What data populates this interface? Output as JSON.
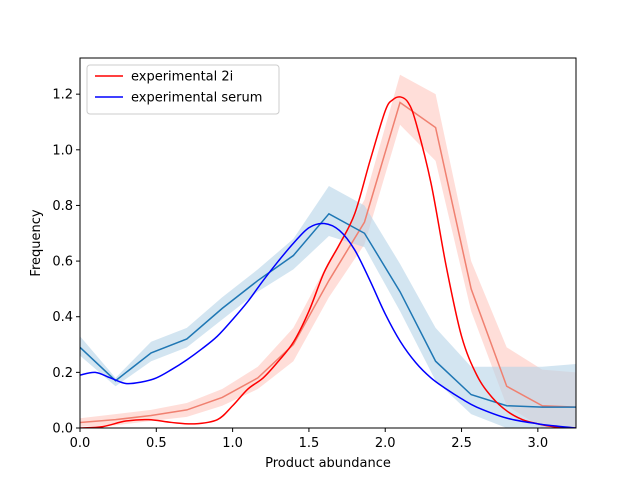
{
  "chart_data": {
    "type": "line",
    "title": "",
    "xlabel": "Product abundance",
    "ylabel": "Frequency",
    "xlim": [
      0.0,
      3.25
    ],
    "ylim": [
      0.0,
      1.33
    ],
    "xticks": [
      "0.0",
      "0.5",
      "1.0",
      "1.5",
      "2.0",
      "2.5",
      "3.0"
    ],
    "yticks": [
      "0.0",
      "0.2",
      "0.4",
      "0.6",
      "0.8",
      "1.0",
      "1.2"
    ],
    "grid": false,
    "legend_position": "top-left",
    "series": [
      {
        "name": "experimental 2i",
        "kind": "smooth-line",
        "color": "#ff0000",
        "x": [
          0.0,
          0.15,
          0.3,
          0.45,
          0.6,
          0.75,
          0.9,
          1.0,
          1.1,
          1.2,
          1.3,
          1.4,
          1.5,
          1.6,
          1.7,
          1.8,
          1.9,
          2.0,
          2.05,
          2.1,
          2.15,
          2.2,
          2.3,
          2.4,
          2.5,
          2.6,
          2.7,
          2.8,
          2.9,
          3.0,
          3.1,
          3.25
        ],
        "y": [
          0.0,
          0.005,
          0.025,
          0.03,
          0.02,
          0.015,
          0.03,
          0.08,
          0.14,
          0.18,
          0.24,
          0.31,
          0.42,
          0.56,
          0.66,
          0.77,
          0.96,
          1.14,
          1.18,
          1.19,
          1.17,
          1.1,
          0.88,
          0.58,
          0.33,
          0.19,
          0.11,
          0.06,
          0.03,
          0.015,
          0.005,
          0.0
        ]
      },
      {
        "name": "experimental serum",
        "kind": "smooth-line",
        "color": "#0000ff",
        "x": [
          0.0,
          0.1,
          0.2,
          0.3,
          0.4,
          0.5,
          0.6,
          0.7,
          0.8,
          0.9,
          1.0,
          1.1,
          1.2,
          1.3,
          1.4,
          1.5,
          1.6,
          1.7,
          1.8,
          1.9,
          2.0,
          2.1,
          2.2,
          2.3,
          2.4,
          2.5,
          2.6,
          2.8,
          3.0,
          3.1,
          3.25
        ],
        "y": [
          0.19,
          0.2,
          0.18,
          0.16,
          0.165,
          0.18,
          0.21,
          0.245,
          0.285,
          0.33,
          0.39,
          0.455,
          0.53,
          0.6,
          0.665,
          0.72,
          0.735,
          0.71,
          0.64,
          0.53,
          0.41,
          0.31,
          0.235,
          0.18,
          0.14,
          0.105,
          0.075,
          0.035,
          0.015,
          0.008,
          0.0
        ]
      },
      {
        "name": "",
        "kind": "band-line",
        "color": "#f08070",
        "fill": "#ffc8c0",
        "x": [
          0.0,
          0.233,
          0.466,
          0.7,
          0.932,
          1.165,
          1.398,
          1.631,
          1.864,
          2.097,
          2.33,
          2.563,
          2.796,
          3.029,
          3.25
        ],
        "y": [
          0.02,
          0.03,
          0.045,
          0.065,
          0.11,
          0.18,
          0.3,
          0.53,
          0.74,
          1.17,
          1.08,
          0.5,
          0.15,
          0.08,
          0.075
        ],
        "y_lower": [
          0.005,
          0.01,
          0.025,
          0.04,
          0.08,
          0.14,
          0.24,
          0.47,
          0.66,
          1.09,
          0.96,
          0.42,
          0.08,
          0.0,
          0.0
        ],
        "y_upper": [
          0.035,
          0.05,
          0.065,
          0.09,
          0.14,
          0.22,
          0.36,
          0.6,
          0.82,
          1.27,
          1.2,
          0.6,
          0.29,
          0.21,
          0.2
        ]
      },
      {
        "name": "",
        "kind": "band-line",
        "color": "#1f77b4",
        "fill": "#b6d3e8",
        "x": [
          0.0,
          0.233,
          0.466,
          0.7,
          0.932,
          1.165,
          1.398,
          1.631,
          1.864,
          2.097,
          2.33,
          2.563,
          2.796,
          3.029,
          3.25
        ],
        "y": [
          0.29,
          0.17,
          0.27,
          0.32,
          0.43,
          0.53,
          0.62,
          0.77,
          0.7,
          0.49,
          0.24,
          0.12,
          0.08,
          0.075,
          0.075
        ],
        "y_lower": [
          0.26,
          0.15,
          0.24,
          0.29,
          0.39,
          0.49,
          0.57,
          0.69,
          0.65,
          0.42,
          0.17,
          0.05,
          0.0,
          0.0,
          0.0
        ],
        "y_upper": [
          0.33,
          0.18,
          0.31,
          0.36,
          0.47,
          0.57,
          0.68,
          0.87,
          0.8,
          0.59,
          0.36,
          0.22,
          0.22,
          0.22,
          0.23
        ]
      }
    ]
  }
}
